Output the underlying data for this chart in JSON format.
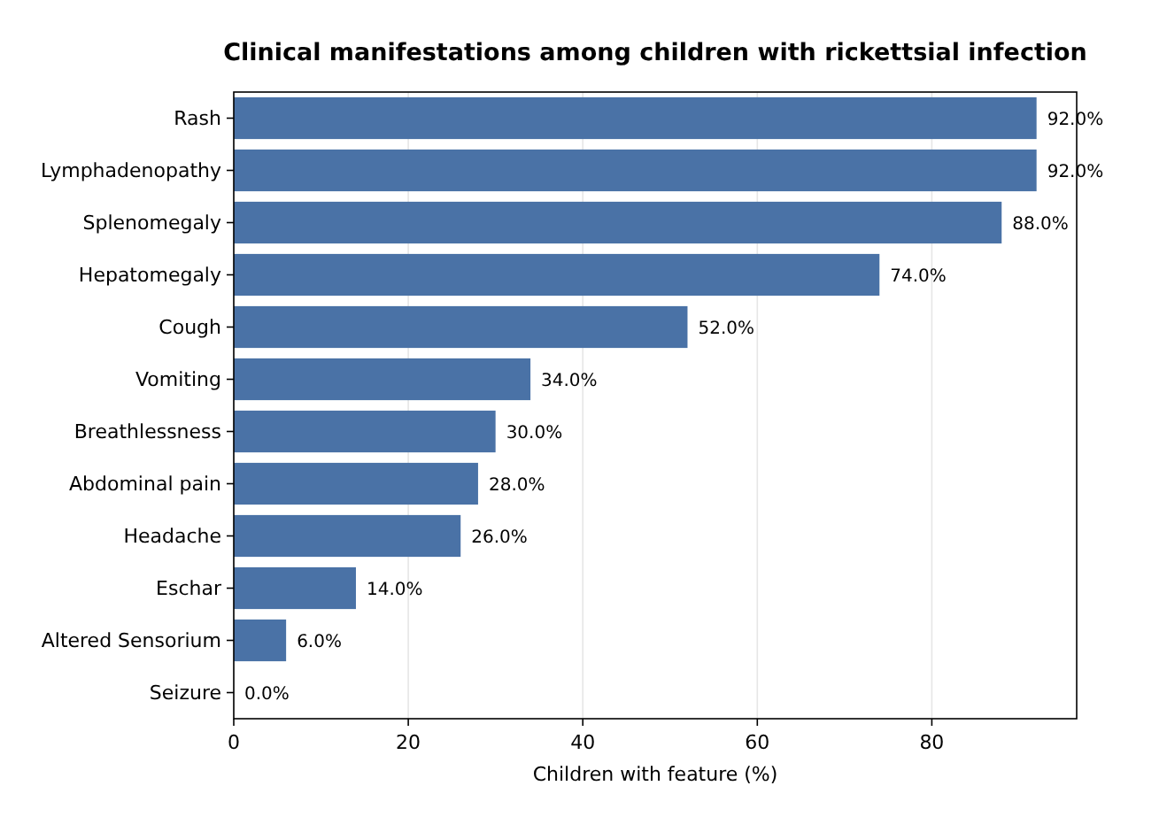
{
  "chart_data": {
    "type": "bar",
    "orientation": "horizontal",
    "title": "Clinical manifestations among children with rickettsial infection",
    "xlabel": "Children with feature (%)",
    "categories": [
      "Rash",
      "Lymphadenopathy",
      "Splenomegaly",
      "Hepatomegaly",
      "Cough",
      "Vomiting",
      "Breathlessness",
      "Abdominal pain",
      "Headache",
      "Eschar",
      "Altered Sensorium",
      "Seizure"
    ],
    "values": [
      92,
      92,
      88,
      74,
      52,
      34,
      30,
      28,
      26,
      14,
      6,
      0
    ],
    "value_labels": [
      "92.0%",
      "92.0%",
      "88.0%",
      "74.0%",
      "52.0%",
      "34.0%",
      "30.0%",
      "28.0%",
      "26.0%",
      "14.0%",
      "6.0%",
      "0.0%"
    ],
    "color": "#4a72a6",
    "xlim": [
      0,
      96.6
    ],
    "xticks": [
      0,
      20,
      40,
      60,
      80
    ],
    "grid": "x"
  }
}
